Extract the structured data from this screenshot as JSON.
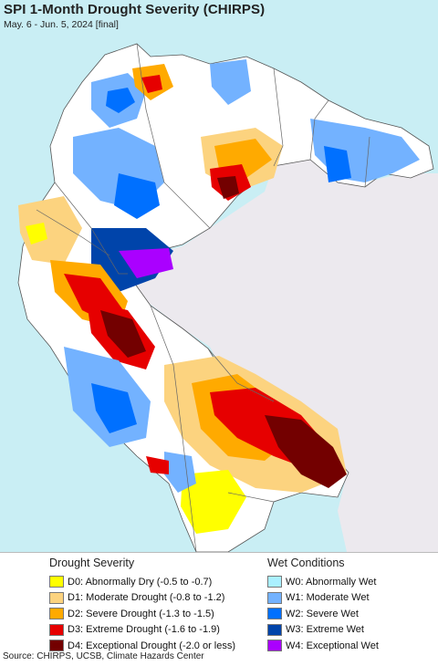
{
  "header": {
    "title": "SPI 1-Month Drought Severity (CHIRPS)",
    "subtitle": "May. 6 - Jun. 5, 2024 [final]"
  },
  "map": {
    "ocean_color": "#c9eef4",
    "land_color": "#ffffff",
    "outside_region_color": "#ece9ee",
    "border_color": "#666666"
  },
  "legend": {
    "drought": {
      "heading": "Drought Severity",
      "items": [
        {
          "code": "D0",
          "label": "D0: Abnormally Dry (-0.5 to -0.7)",
          "color": "#ffff00"
        },
        {
          "code": "D1",
          "label": "D1: Moderate Drought (-0.8 to -1.2)",
          "color": "#fcd37f"
        },
        {
          "code": "D2",
          "label": "D2: Severe Drought (-1.3 to -1.5)",
          "color": "#ffaa00"
        },
        {
          "code": "D3",
          "label": "D3: Extreme Drought (-1.6 to -1.9)",
          "color": "#e60000"
        },
        {
          "code": "D4",
          "label": "D4: Exceptional Drought (-2.0 or less)",
          "color": "#730000"
        }
      ]
    },
    "wet": {
      "heading": "Wet Conditions",
      "items": [
        {
          "code": "W0",
          "label": "W0: Abnormally Wet",
          "color": "#aaf0ff"
        },
        {
          "code": "W1",
          "label": "W1: Moderate Wet",
          "color": "#73b2ff"
        },
        {
          "code": "W2",
          "label": "W2: Severe Wet",
          "color": "#0070ff"
        },
        {
          "code": "W3",
          "label": "W3: Extreme Wet",
          "color": "#0044aa"
        },
        {
          "code": "W4",
          "label": "W4: Exceptional Wet",
          "color": "#aa00ff"
        }
      ]
    }
  },
  "footer": {
    "source": "Source: CHIRPS, UCSB, Climate Hazards Center"
  }
}
